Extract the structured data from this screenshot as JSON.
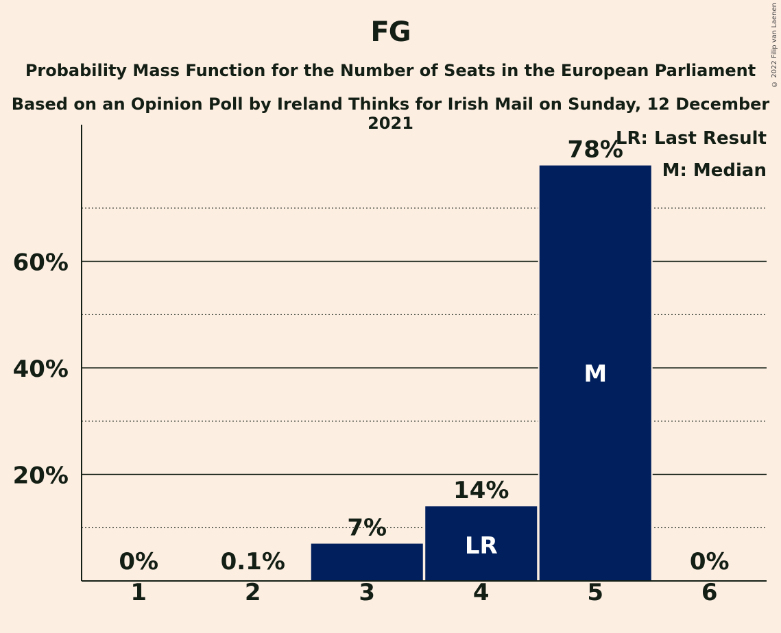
{
  "title": "FG",
  "subtitle": "Probability Mass Function for the Number of Seats in the European Parliament",
  "subtitle2": "Based on an Opinion Poll by Ireland Thinks for Irish Mail on Sunday, 12 December 2021",
  "copyright": "© 2022 Filip van Laenen",
  "legend": {
    "lr": "LR: Last Result",
    "m": "M: Median"
  },
  "colors": {
    "bar": "#001f5c",
    "background": "#fdeee2",
    "text": "#131e14"
  },
  "chart_data": {
    "type": "bar",
    "categories": [
      "1",
      "2",
      "3",
      "4",
      "5",
      "6"
    ],
    "values": [
      0,
      0.1,
      7,
      14,
      78,
      0
    ],
    "labels": [
      "0%",
      "0.1%",
      "7%",
      "14%",
      "78%",
      "0%"
    ],
    "markers": {
      "4": "LR",
      "5": "M"
    },
    "yticks": [
      20,
      40,
      60
    ],
    "ytick_labels": [
      "20%",
      "40%",
      "60%"
    ],
    "minor_gridlines": [
      10,
      30,
      50,
      70
    ],
    "ylim": [
      0,
      85
    ],
    "legend_position": "top-right"
  }
}
